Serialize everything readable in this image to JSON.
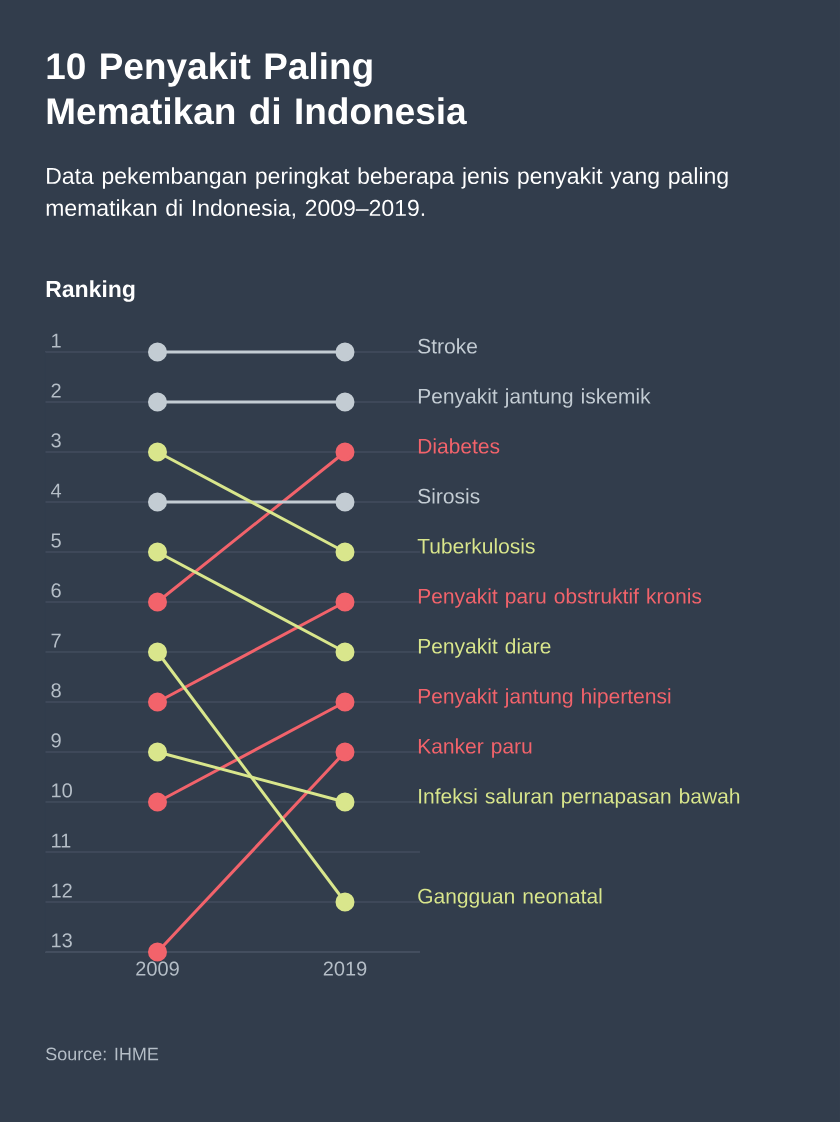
{
  "chart_data": {
    "type": "line",
    "title": "10 Penyakit Paling Mematikan di Indonesia",
    "subtitle": "Data pekembangan peringkat beberapa jenis penyakit yang paling mematikan di Indonesia, 2009–2019.",
    "ylabel": "Ranking",
    "x": [
      2009,
      2019
    ],
    "xlim": [
      2003,
      2023
    ],
    "xticks": [
      2009,
      2019
    ],
    "ylim": [
      13,
      1
    ],
    "yticks": [
      1,
      2,
      3,
      4,
      5,
      6,
      7,
      8,
      9,
      10,
      11,
      12,
      13
    ],
    "grid": "y",
    "marker": "circle",
    "line_style": "solid",
    "series": [
      {
        "name": "Stroke",
        "color": "#c3ccd3",
        "values": [
          1,
          1
        ]
      },
      {
        "name": "Penyakit jantung iskemik",
        "color": "#c3ccd3",
        "values": [
          2,
          2
        ]
      },
      {
        "name": "Diabetes",
        "color": "#f2636b",
        "values": [
          6,
          3
        ]
      },
      {
        "name": "Sirosis",
        "color": "#c3ccd3",
        "values": [
          4,
          4
        ]
      },
      {
        "name": "Tuberkulosis",
        "color": "#d9e68c",
        "values": [
          3,
          5
        ]
      },
      {
        "name": "Penyakit paru obstruktif kronis",
        "color": "#f2636b",
        "values": [
          8,
          6
        ]
      },
      {
        "name": "Penyakit diare",
        "color": "#d9e68c",
        "values": [
          5,
          7
        ]
      },
      {
        "name": "Penyakit jantung hipertensi",
        "color": "#f2636b",
        "values": [
          10,
          8
        ]
      },
      {
        "name": "Kanker paru",
        "color": "#f2636b",
        "values": [
          13,
          9
        ]
      },
      {
        "name": "Infeksi saluran pernapasan bawah",
        "color": "#d9e68c",
        "values": [
          9,
          10
        ]
      },
      {
        "name": "Gangguan neonatal",
        "color": "#d9e68c",
        "values": [
          7,
          12
        ]
      }
    ],
    "annotations": [
      "Source: IHME"
    ]
  }
}
